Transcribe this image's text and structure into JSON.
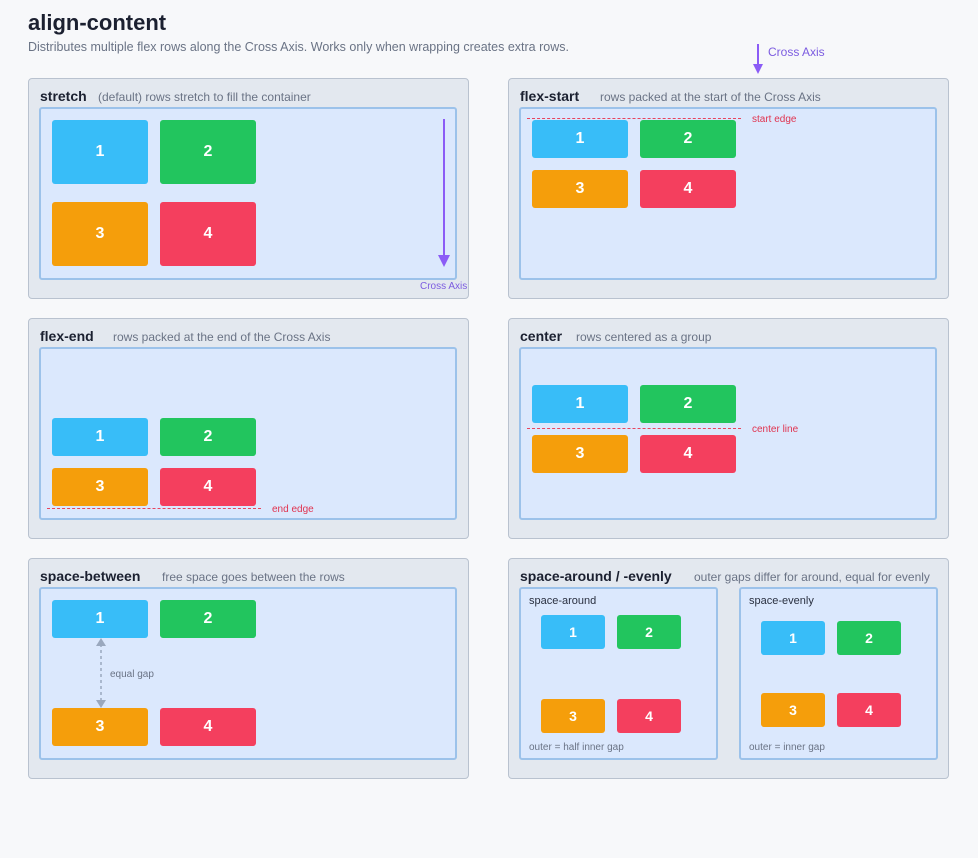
{
  "header": {
    "title": "align-content",
    "subtitle": "Distributes multiple flex rows along the Cross Axis. Works only when wrapping creates extra rows.",
    "cross_axis_label": "Cross Axis"
  },
  "colors": {
    "item1": "#38bdf8",
    "item2": "#22c55e",
    "item3": "#f59e0b",
    "item4": "#f43f5e",
    "axis_arrow": "#8b5cf6",
    "guide_line": "#e8455e"
  },
  "panels": {
    "stretch": {
      "title": "stretch",
      "desc": "(default) rows stretch to fill the container",
      "axis_label": "Cross Axis"
    },
    "flex_start": {
      "title": "flex-start",
      "desc": "rows packed at the start of the Cross Axis",
      "edge_label": "start edge"
    },
    "flex_end": {
      "title": "flex-end",
      "desc": "rows packed at the end of the Cross Axis",
      "edge_label": "end edge"
    },
    "center": {
      "title": "center",
      "desc": "rows centered as a group",
      "edge_label": "center line"
    },
    "space_between": {
      "title": "space-between",
      "desc": "free space goes between the rows",
      "gap_label": "equal gap"
    },
    "space_around": {
      "title": "space-around / -evenly",
      "desc": "outer gaps differ for around, equal for evenly",
      "around": {
        "title": "space-around",
        "note": "outer = half inner gap"
      },
      "evenly": {
        "title": "space-evenly",
        "note": "outer = inner gap"
      }
    }
  },
  "items": [
    "1",
    "2",
    "3",
    "4"
  ]
}
